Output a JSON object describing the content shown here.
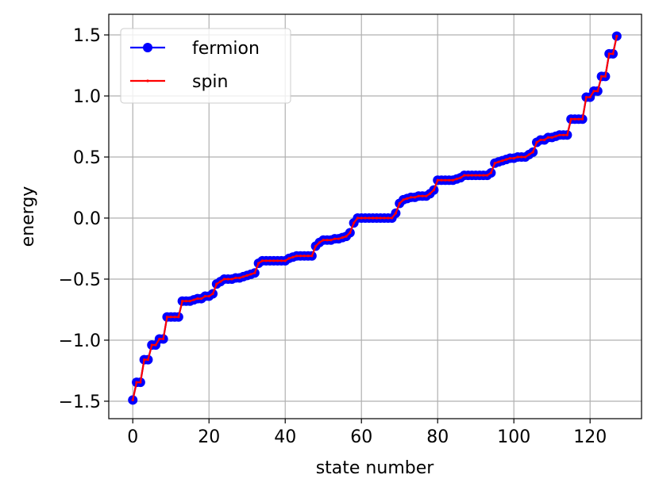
{
  "chart_data": {
    "type": "line",
    "xlabel": "state number",
    "ylabel": "energy",
    "x": [
      0,
      1,
      2,
      3,
      4,
      5,
      6,
      7,
      8,
      9,
      10,
      11,
      12,
      13,
      14,
      15,
      16,
      17,
      18,
      19,
      20,
      21,
      22,
      23,
      24,
      25,
      26,
      27,
      28,
      29,
      30,
      31,
      32,
      33,
      34,
      35,
      36,
      37,
      38,
      39,
      40,
      41,
      42,
      43,
      44,
      45,
      46,
      47,
      48,
      49,
      50,
      51,
      52,
      53,
      54,
      55,
      56,
      57,
      58,
      59,
      60,
      61,
      62,
      63,
      64,
      65,
      66,
      67,
      68,
      69,
      70,
      71,
      72,
      73,
      74,
      75,
      76,
      77,
      78,
      79,
      80,
      81,
      82,
      83,
      84,
      85,
      86,
      87,
      88,
      89,
      90,
      91,
      92,
      93,
      94,
      95,
      96,
      97,
      98,
      99,
      100,
      101,
      102,
      103,
      104,
      105,
      106,
      107,
      108,
      109,
      110,
      111,
      112,
      113,
      114,
      115,
      116,
      117,
      118,
      119,
      120,
      121,
      122,
      123,
      124,
      125,
      126,
      127
    ],
    "series": [
      {
        "name": "fermion",
        "color": "#0000ff",
        "marker": "circle",
        "values": [
          -1.49,
          -1.345,
          -1.345,
          -1.16,
          -1.16,
          -1.04,
          -1.04,
          -0.99,
          -0.99,
          -0.81,
          -0.81,
          -0.81,
          -0.81,
          -0.68,
          -0.68,
          -0.68,
          -0.67,
          -0.66,
          -0.66,
          -0.64,
          -0.64,
          -0.62,
          -0.54,
          -0.52,
          -0.5,
          -0.5,
          -0.5,
          -0.49,
          -0.49,
          -0.48,
          -0.47,
          -0.46,
          -0.45,
          -0.37,
          -0.35,
          -0.35,
          -0.35,
          -0.35,
          -0.35,
          -0.35,
          -0.35,
          -0.33,
          -0.32,
          -0.31,
          -0.31,
          -0.31,
          -0.31,
          -0.31,
          -0.23,
          -0.2,
          -0.18,
          -0.18,
          -0.18,
          -0.17,
          -0.17,
          -0.16,
          -0.15,
          -0.12,
          -0.04,
          0,
          0,
          0,
          0,
          0,
          0,
          0,
          0,
          0,
          0,
          0.04,
          0.12,
          0.15,
          0.16,
          0.17,
          0.17,
          0.18,
          0.18,
          0.18,
          0.2,
          0.23,
          0.31,
          0.31,
          0.31,
          0.31,
          0.31,
          0.32,
          0.33,
          0.35,
          0.35,
          0.35,
          0.35,
          0.35,
          0.35,
          0.35,
          0.37,
          0.45,
          0.46,
          0.47,
          0.48,
          0.49,
          0.49,
          0.5,
          0.5,
          0.5,
          0.52,
          0.54,
          0.62,
          0.64,
          0.64,
          0.66,
          0.66,
          0.67,
          0.68,
          0.68,
          0.68,
          0.81,
          0.81,
          0.81,
          0.81,
          0.99,
          0.99,
          1.04,
          1.04,
          1.16,
          1.16,
          1.345,
          1.345,
          1.49
        ]
      },
      {
        "name": "spin",
        "color": "#ff0000",
        "marker": "point",
        "values": [
          -1.49,
          -1.345,
          -1.345,
          -1.16,
          -1.16,
          -1.04,
          -1.04,
          -0.99,
          -0.99,
          -0.81,
          -0.81,
          -0.81,
          -0.81,
          -0.68,
          -0.68,
          -0.68,
          -0.67,
          -0.66,
          -0.66,
          -0.64,
          -0.64,
          -0.62,
          -0.54,
          -0.52,
          -0.5,
          -0.5,
          -0.5,
          -0.49,
          -0.49,
          -0.48,
          -0.47,
          -0.46,
          -0.45,
          -0.37,
          -0.35,
          -0.35,
          -0.35,
          -0.35,
          -0.35,
          -0.35,
          -0.35,
          -0.33,
          -0.32,
          -0.31,
          -0.31,
          -0.31,
          -0.31,
          -0.31,
          -0.23,
          -0.2,
          -0.18,
          -0.18,
          -0.18,
          -0.17,
          -0.17,
          -0.16,
          -0.15,
          -0.12,
          -0.04,
          0,
          0,
          0,
          0,
          0,
          0,
          0,
          0,
          0,
          0,
          0.04,
          0.12,
          0.15,
          0.16,
          0.17,
          0.17,
          0.18,
          0.18,
          0.18,
          0.2,
          0.23,
          0.31,
          0.31,
          0.31,
          0.31,
          0.31,
          0.32,
          0.33,
          0.35,
          0.35,
          0.35,
          0.35,
          0.35,
          0.35,
          0.35,
          0.37,
          0.45,
          0.46,
          0.47,
          0.48,
          0.49,
          0.49,
          0.5,
          0.5,
          0.5,
          0.52,
          0.54,
          0.62,
          0.64,
          0.64,
          0.66,
          0.66,
          0.67,
          0.68,
          0.68,
          0.68,
          0.81,
          0.81,
          0.81,
          0.81,
          0.99,
          0.99,
          1.04,
          1.04,
          1.16,
          1.16,
          1.345,
          1.345,
          1.49
        ]
      }
    ],
    "xlim": [
      -6.3,
      133.5
    ],
    "xticks": [
      0,
      20,
      40,
      60,
      80,
      100,
      120
    ],
    "ylim": [
      -1.643,
      1.669
    ],
    "yticks": [
      {
        "value": -1.5,
        "label": "−1.5"
      },
      {
        "value": -1.0,
        "label": "−1.0"
      },
      {
        "value": -0.5,
        "label": "−0.5"
      },
      {
        "value": 0,
        "label": "0.0"
      },
      0.5,
      {
        "value": 1.0,
        "label": "1.0"
      },
      1.5
    ],
    "grid": true,
    "legend": "upper left"
  }
}
